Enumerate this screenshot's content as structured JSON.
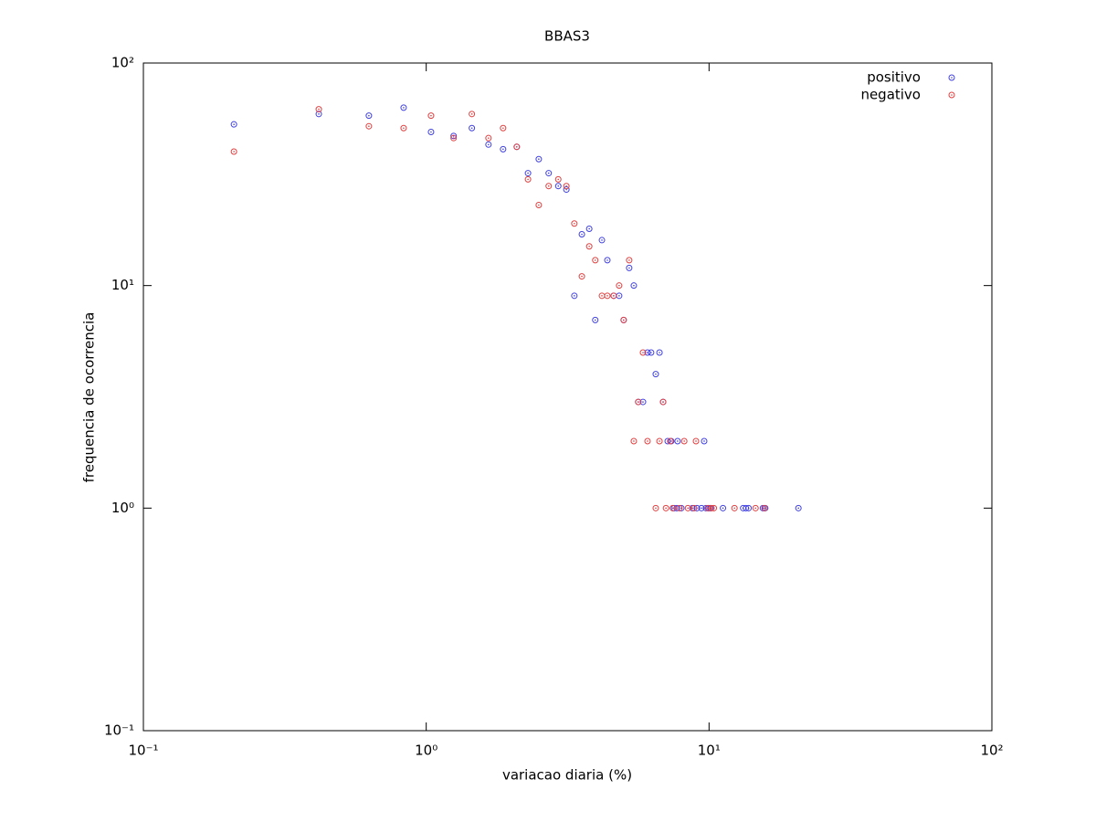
{
  "chart_data": {
    "type": "scatter",
    "title": "BBAS3",
    "xlabel": "variacao diaria (%)",
    "ylabel": "frequencia de ocorrencia",
    "xscale": "log",
    "yscale": "log",
    "xlim": [
      0.1,
      100
    ],
    "ylim": [
      0.1,
      100
    ],
    "xticks": [
      {
        "value": 0.1,
        "label": "10⁻¹"
      },
      {
        "value": 1,
        "label": "10⁰"
      },
      {
        "value": 10,
        "label": "10¹"
      },
      {
        "value": 100,
        "label": "10²"
      }
    ],
    "yticks": [
      {
        "value": 0.1,
        "label": "10⁻¹"
      },
      {
        "value": 1,
        "label": "10⁰"
      },
      {
        "value": 10,
        "label": "10¹"
      },
      {
        "value": 100,
        "label": "10²"
      }
    ],
    "legend": "top-right",
    "series": [
      {
        "name": "positivo",
        "color": "#4040e0",
        "x": [
          0.209,
          0.417,
          0.627,
          0.832,
          1.04,
          1.25,
          1.45,
          1.66,
          1.87,
          2.09,
          2.29,
          2.5,
          2.71,
          2.93,
          3.13,
          3.34,
          3.55,
          3.77,
          3.96,
          4.18,
          4.37,
          4.6,
          4.81,
          4.99,
          5.22,
          5.42,
          5.62,
          5.84,
          6.06,
          6.24,
          6.48,
          6.68,
          6.88,
          7.14,
          7.35,
          7.74,
          9.61,
          7.52,
          7.69,
          7.98,
          8.73,
          9.06,
          9.4,
          9.75,
          9.97,
          10.1,
          11.2,
          13.2,
          13.5,
          13.8,
          15.5,
          15.8,
          20.7
        ],
        "values": [
          53,
          59,
          58,
          63,
          49,
          47,
          51,
          43,
          41,
          42,
          32,
          37,
          32,
          28,
          27,
          9,
          17,
          18,
          7,
          16,
          13,
          9,
          9,
          7,
          12,
          10,
          3,
          3,
          5,
          5,
          4,
          5,
          3,
          2,
          2,
          2,
          2,
          1,
          1,
          1,
          1,
          1,
          1,
          1,
          1,
          1,
          1,
          1,
          1,
          1,
          1,
          1,
          1
        ]
      },
      {
        "name": "negativo",
        "color": "#e04040",
        "x": [
          0.209,
          0.417,
          0.627,
          0.832,
          1.04,
          1.25,
          1.45,
          1.66,
          1.87,
          2.09,
          2.29,
          2.5,
          2.71,
          2.93,
          3.13,
          3.34,
          3.55,
          3.77,
          3.96,
          4.18,
          4.37,
          4.6,
          4.81,
          4.99,
          5.22,
          5.42,
          5.62,
          5.84,
          6.06,
          6.68,
          6.88,
          7.3,
          8.17,
          8.99,
          6.48,
          7.04,
          7.44,
          7.86,
          8.42,
          8.85,
          9.9,
          10.2,
          10.4,
          12.3,
          14.6,
          15.7
        ],
        "values": [
          40,
          62,
          52,
          51,
          58,
          46,
          59,
          46,
          51,
          42,
          30,
          23,
          28,
          30,
          28,
          19,
          11,
          15,
          13,
          9,
          9,
          9,
          10,
          7,
          13,
          2,
          3,
          5,
          2,
          2,
          3,
          2,
          2,
          2,
          1,
          1,
          1,
          1,
          1,
          1,
          1,
          1,
          1,
          1,
          1,
          1
        ]
      }
    ]
  }
}
